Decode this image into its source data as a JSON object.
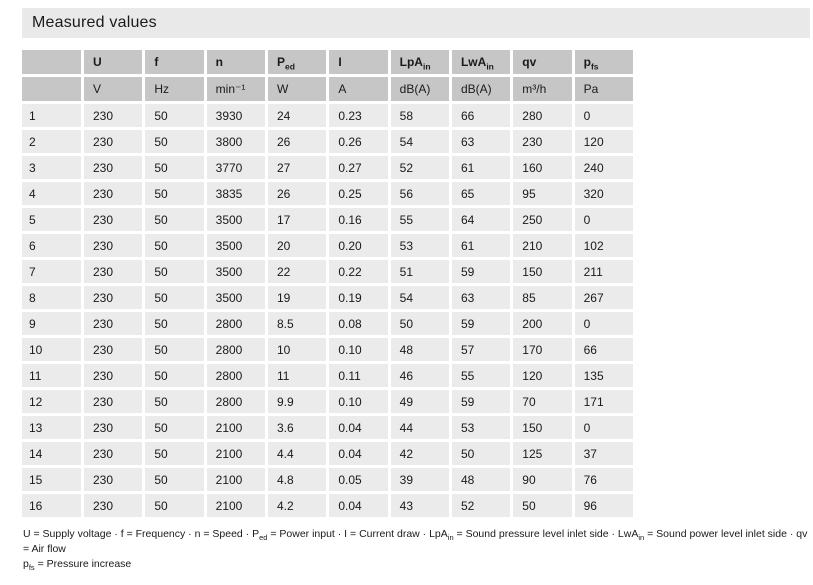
{
  "title": "Measured values",
  "colors": {
    "title_bar_bg": "#e9e9e9",
    "header_cell_bg": "#c6c6c6",
    "data_cell_bg": "#ebebeb"
  },
  "table": {
    "columns": [
      {
        "label": ""
      },
      {
        "label": "U"
      },
      {
        "label": "f"
      },
      {
        "label": "n"
      },
      {
        "label": "P",
        "sub": "ed"
      },
      {
        "label": "I"
      },
      {
        "label": "LpA",
        "sub": "in"
      },
      {
        "label": "LwA",
        "sub": "in"
      },
      {
        "label": "qv"
      },
      {
        "label": "p",
        "sub": "fs"
      }
    ],
    "units": [
      "",
      "V",
      "Hz",
      "min⁻¹",
      "W",
      "A",
      "dB(A)",
      "dB(A)",
      "m³/h",
      "Pa"
    ],
    "rows": [
      [
        "1",
        "230",
        "50",
        "3930",
        "24",
        "0.23",
        "58",
        "66",
        "280",
        "0"
      ],
      [
        "2",
        "230",
        "50",
        "3800",
        "26",
        "0.26",
        "54",
        "63",
        "230",
        "120"
      ],
      [
        "3",
        "230",
        "50",
        "3770",
        "27",
        "0.27",
        "52",
        "61",
        "160",
        "240"
      ],
      [
        "4",
        "230",
        "50",
        "3835",
        "26",
        "0.25",
        "56",
        "65",
        "95",
        "320"
      ],
      [
        "5",
        "230",
        "50",
        "3500",
        "17",
        "0.16",
        "55",
        "64",
        "250",
        "0"
      ],
      [
        "6",
        "230",
        "50",
        "3500",
        "20",
        "0.20",
        "53",
        "61",
        "210",
        "102"
      ],
      [
        "7",
        "230",
        "50",
        "3500",
        "22",
        "0.22",
        "51",
        "59",
        "150",
        "211"
      ],
      [
        "8",
        "230",
        "50",
        "3500",
        "19",
        "0.19",
        "54",
        "63",
        "85",
        "267"
      ],
      [
        "9",
        "230",
        "50",
        "2800",
        "8.5",
        "0.08",
        "50",
        "59",
        "200",
        "0"
      ],
      [
        "10",
        "230",
        "50",
        "2800",
        "10",
        "0.10",
        "48",
        "57",
        "170",
        "66"
      ],
      [
        "11",
        "230",
        "50",
        "2800",
        "11",
        "0.11",
        "46",
        "55",
        "120",
        "135"
      ],
      [
        "12",
        "230",
        "50",
        "2800",
        "9.9",
        "0.10",
        "49",
        "59",
        "70",
        "171"
      ],
      [
        "13",
        "230",
        "50",
        "2100",
        "3.6",
        "0.04",
        "44",
        "53",
        "150",
        "0"
      ],
      [
        "14",
        "230",
        "50",
        "2100",
        "4.4",
        "0.04",
        "42",
        "50",
        "125",
        "37"
      ],
      [
        "15",
        "230",
        "50",
        "2100",
        "4.8",
        "0.05",
        "39",
        "48",
        "90",
        "76"
      ],
      [
        "16",
        "230",
        "50",
        "2100",
        "4.2",
        "0.04",
        "43",
        "52",
        "50",
        "96"
      ]
    ]
  },
  "footnote": {
    "lines": [
      [
        {
          "text": "U = Supply voltage · f = Frequency · n = Speed · P"
        },
        {
          "sub": "ed"
        },
        {
          "text": " = Power input · I = Current draw · LpA"
        },
        {
          "sub": "in"
        },
        {
          "text": " = Sound pressure level inlet side · LwA"
        },
        {
          "sub": "in"
        },
        {
          "text": " = Sound power level inlet side · qv = Air flow"
        }
      ],
      [
        {
          "text": "p"
        },
        {
          "sub": "fs"
        },
        {
          "text": " = Pressure increase"
        }
      ]
    ]
  }
}
